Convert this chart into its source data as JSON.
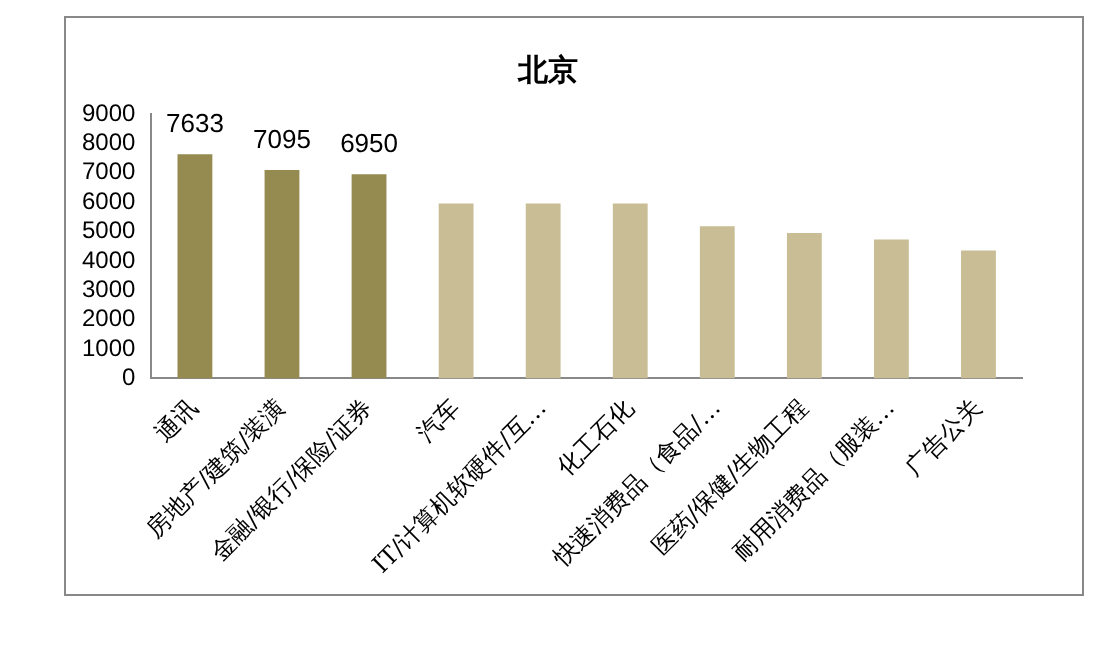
{
  "chart_data": {
    "type": "bar",
    "title": "北京",
    "categories": [
      "通讯",
      "房地产/建筑/装潢",
      "金融/银行/保险/证券",
      "汽车",
      "IT/计算机软硬件/互…",
      "化工石化",
      "快速消费品（食品/…",
      "医药/保健/生物工程",
      "耐用消费品（服装…",
      "广告公关"
    ],
    "values": [
      7633,
      7095,
      6950,
      5950,
      5950,
      5950,
      5180,
      4950,
      4730,
      4350
    ],
    "colors": [
      "#958a4f",
      "#958a4f",
      "#958a4f",
      "#c8bd94",
      "#c8bd94",
      "#c8bd94",
      "#c8bd94",
      "#c8bd94",
      "#c8bd94",
      "#c8bd94"
    ],
    "value_labels": [
      "7633",
      "7095",
      "6950",
      null,
      null,
      null,
      null,
      null,
      null,
      null
    ],
    "ylim": [
      0,
      9000
    ],
    "yticks": [
      0,
      1000,
      2000,
      3000,
      4000,
      5000,
      6000,
      7000,
      8000,
      9000
    ],
    "grid": false,
    "legend": false
  }
}
